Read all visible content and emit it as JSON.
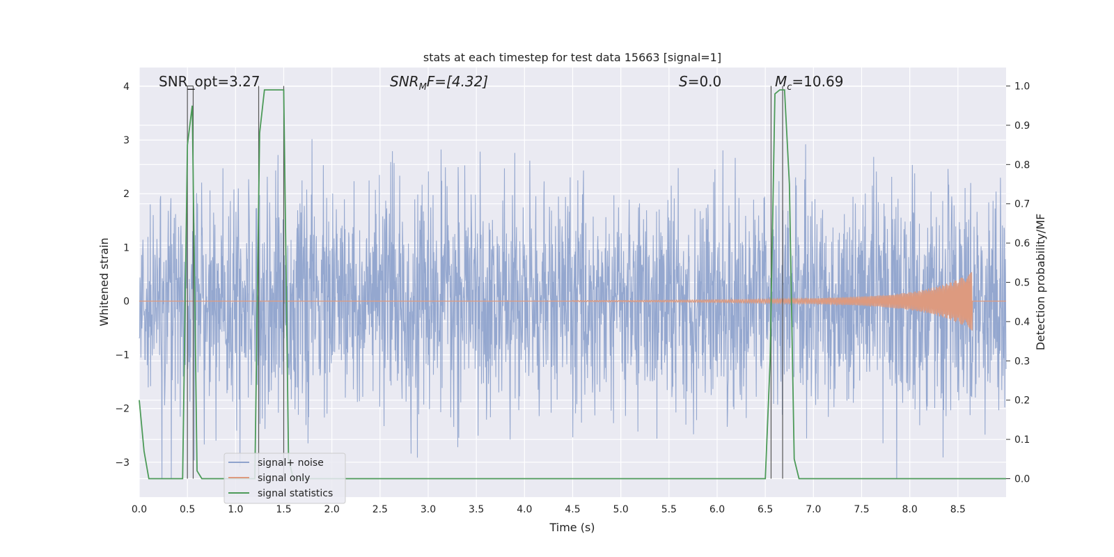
{
  "chart_data": {
    "type": "line",
    "title": "stats at each timestep for test data 15663 [signal=1]",
    "xlabel": "Time (s)",
    "ylabel": "Whitened strain",
    "y2label": "Detection probability/MF",
    "xlim": [
      0.0,
      9.0
    ],
    "ylim": [
      -3.65,
      4.35
    ],
    "y2lim": [
      -0.047,
      1.047
    ],
    "x_ticks": [
      "0.0",
      "0.5",
      "1.0",
      "1.5",
      "2.0",
      "2.5",
      "3.0",
      "3.5",
      "4.0",
      "4.5",
      "5.0",
      "5.5",
      "6.0",
      "6.5",
      "7.0",
      "7.5",
      "8.0",
      "8.5"
    ],
    "y_ticks": [
      "−3",
      "−2",
      "−1",
      "0",
      "1",
      "2",
      "3",
      "4"
    ],
    "y2_ticks": [
      "0.0",
      "0.1",
      "0.2",
      "0.3",
      "0.4",
      "0.5",
      "0.6",
      "0.7",
      "0.8",
      "0.9",
      "1.0"
    ],
    "grid": true,
    "legend_position": "lower-left",
    "annotations": {
      "snr_opt": "SNR_opt=3.27",
      "snr_mf_main": "SNR",
      "snr_mf_sub": "M",
      "snr_mf_rest": "F=[4.32]",
      "s_main": "S",
      "s_rest": "=0.0",
      "mc_main": "M",
      "mc_sub": "c",
      "mc_rest": "=10.69"
    },
    "series": [
      {
        "name": "signal+ noise",
        "color": "#8fa3cc",
        "description_of_values": "dense random noise spanning roughly -3.3 to 4.0 over 0 to 9 s",
        "approx_min": -3.3,
        "approx_max": 4.0
      },
      {
        "name": "signal only",
        "color": "#dd9a7f",
        "chirp": {
          "start": 4.5,
          "end": 8.65,
          "peak_amplitude": 0.55
        }
      },
      {
        "name": "signal statistics",
        "color": "#4c9a58",
        "axis": "right",
        "x": [
          0.0,
          0.05,
          0.1,
          0.2,
          0.3,
          0.4,
          0.45,
          0.5,
          0.55,
          0.6,
          0.65,
          0.7,
          1.1,
          1.2,
          1.25,
          1.3,
          1.4,
          1.5,
          1.55,
          1.6,
          6.5,
          6.55,
          6.6,
          6.65,
          6.7,
          6.75,
          6.8,
          6.85,
          6.9,
          9.0
        ],
        "y": [
          0.2,
          0.07,
          0.0,
          0.0,
          0.0,
          0.0,
          0.0,
          0.85,
          0.95,
          0.02,
          0.0,
          0.0,
          0.0,
          0.0,
          0.88,
          0.99,
          0.99,
          0.99,
          0.05,
          0.0,
          0.0,
          0.3,
          0.98,
          0.99,
          0.99,
          0.75,
          0.05,
          0.0,
          0.0,
          0.0
        ]
      }
    ],
    "vertical_markers": [
      0.5,
      0.56,
      1.24,
      1.5,
      6.56,
      6.68
    ]
  },
  "colors": {
    "plot_background": "#eaeaf2",
    "grid": "#ffffff",
    "noise": "#8fa3cc",
    "signal": "#dd9a7f",
    "stats": "#4c9a58",
    "marker": "#555555"
  }
}
